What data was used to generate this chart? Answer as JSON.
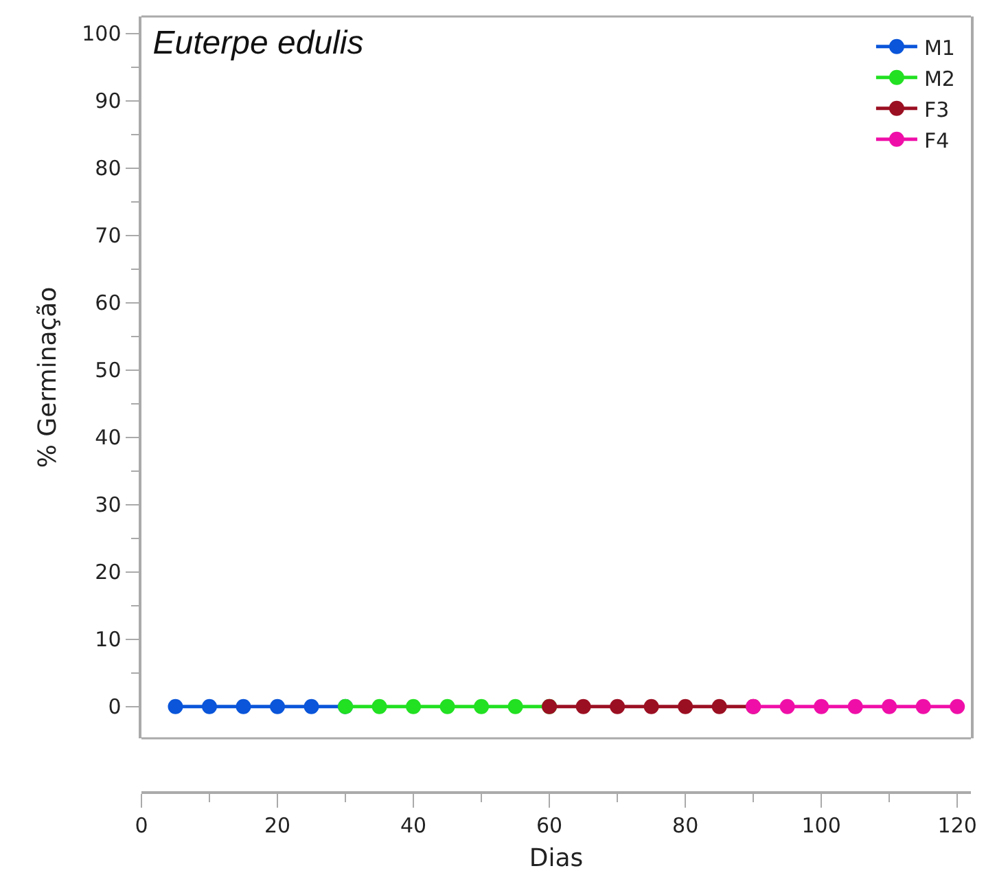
{
  "chart_data": {
    "type": "line",
    "title": "Euterpe edulis",
    "xlabel": "Dias",
    "ylabel": "% Germinação",
    "series": [
      {
        "name": "M1",
        "color": "#0a55d9",
        "x": [
          5,
          10,
          15,
          20,
          25,
          30
        ],
        "values": [
          0,
          0,
          0,
          0,
          0,
          0
        ]
      },
      {
        "name": "M2",
        "color": "#22e022",
        "x": [
          30,
          35,
          40,
          45,
          50,
          55,
          60
        ],
        "values": [
          0,
          0,
          0,
          0,
          0,
          0,
          0
        ]
      },
      {
        "name": "F3",
        "color": "#9b0f22",
        "x": [
          60,
          65,
          70,
          75,
          80,
          85,
          90
        ],
        "values": [
          0,
          0,
          0,
          0,
          0,
          0,
          0
        ]
      },
      {
        "name": "F4",
        "color": "#ef0fa8",
        "x": [
          90,
          95,
          100,
          105,
          110,
          115,
          120
        ],
        "values": [
          0,
          0,
          0,
          0,
          0,
          0,
          0
        ]
      }
    ],
    "xlim": [
      0,
      122
    ],
    "xticks": [
      0,
      20,
      40,
      60,
      80,
      100,
      120
    ],
    "ylim": [
      -4.7,
      102.5
    ],
    "yticks": [
      0,
      10,
      20,
      30,
      40,
      50,
      60,
      70,
      80,
      90,
      100
    ],
    "grid": false,
    "legend": "top right",
    "marker": "circle",
    "line_style": "solid"
  }
}
